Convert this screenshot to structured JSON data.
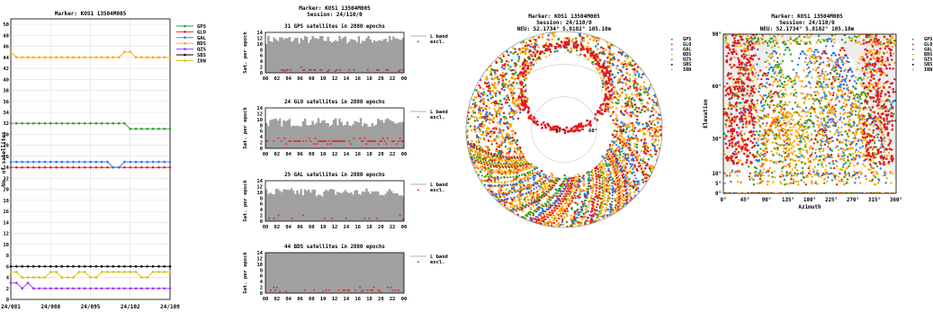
{
  "chart_data": [
    {
      "type": "line",
      "title": "Marker: KOS1 13504M005",
      "ylabel": "No. of satellites",
      "ylim": [
        0,
        51
      ],
      "y_ticks": [
        "0",
        "2",
        "4",
        "6",
        "8",
        "10",
        "12",
        "14",
        "16",
        "18",
        "20",
        "22",
        "24",
        "26",
        "28",
        "30",
        "32",
        "34",
        "36",
        "38",
        "40",
        "42",
        "44",
        "46",
        "48",
        "50"
      ],
      "x_ticks": [
        "24/081",
        "24/088",
        "24/095",
        "24/102",
        "24/109"
      ],
      "xlim": [
        0,
        28
      ],
      "grid": true,
      "legend_position": "right",
      "series": [
        {
          "name": "GPS",
          "color": "#2ca02c",
          "values": [
            32,
            32,
            32,
            32,
            32,
            32,
            32,
            32,
            32,
            32,
            32,
            32,
            32,
            32,
            32,
            32,
            32,
            32,
            32,
            32,
            32,
            31,
            31,
            31,
            31,
            31,
            31,
            31,
            31
          ]
        },
        {
          "name": "GLO",
          "color": "#e31a1c",
          "values": [
            24,
            24,
            24,
            24,
            24,
            24,
            24,
            24,
            24,
            24,
            24,
            24,
            24,
            24,
            24,
            24,
            24,
            24,
            24,
            24,
            24,
            24,
            24,
            24,
            24,
            24,
            24,
            24,
            24
          ]
        },
        {
          "name": "GAL",
          "color": "#1f78ff",
          "values": [
            25,
            25,
            25,
            25,
            25,
            25,
            25,
            25,
            25,
            25,
            25,
            25,
            25,
            25,
            25,
            25,
            25,
            25,
            24,
            24,
            25,
            25,
            25,
            25,
            25,
            25,
            25,
            25,
            25
          ]
        },
        {
          "name": "BDS",
          "color": "#ffa500",
          "values": [
            45,
            44,
            44,
            44,
            44,
            44,
            44,
            44,
            44,
            44,
            44,
            44,
            44,
            44,
            44,
            44,
            44,
            44,
            44,
            44,
            45,
            45,
            44,
            44,
            44,
            44,
            44,
            44,
            44
          ]
        },
        {
          "name": "QZS",
          "color": "#9b30ff",
          "values": [
            3,
            3,
            2,
            3,
            2,
            2,
            2,
            2,
            2,
            2,
            2,
            2,
            2,
            2,
            2,
            2,
            2,
            2,
            2,
            2,
            2,
            2,
            2,
            2,
            2,
            2,
            2,
            2,
            2
          ]
        },
        {
          "name": "SBS",
          "color": "#000000",
          "values": [
            6,
            6,
            6,
            6,
            6,
            6,
            6,
            6,
            6,
            6,
            6,
            6,
            6,
            6,
            6,
            6,
            6,
            6,
            6,
            6,
            6,
            6,
            6,
            6,
            6,
            6,
            6,
            6,
            6
          ]
        },
        {
          "name": "IRN",
          "color": "#d4c000",
          "values": [
            5,
            5,
            4,
            4,
            4,
            4,
            4,
            5,
            5,
            4,
            4,
            4,
            5,
            5,
            4,
            4,
            5,
            5,
            5,
            5,
            5,
            5,
            5,
            4,
            4,
            5,
            5,
            5,
            5
          ]
        }
      ]
    },
    {
      "type": "bar",
      "title": "Marker: KOS1 13504M005",
      "subtitle": "Session: 24/110/0",
      "ylabel": "Sat. per epoch",
      "ylim": [
        0,
        14
      ],
      "y_ticks": [
        "0",
        "2",
        "4",
        "6",
        "8",
        "10",
        "12",
        "14"
      ],
      "x_ticks": [
        "00",
        "02",
        "04",
        "06",
        "08",
        "10",
        "12",
        "14",
        "16",
        "18",
        "20",
        "22",
        "00"
      ],
      "legend": [
        "L band",
        "excl."
      ],
      "panels": [
        {
          "title": "31 GPS satellites in 2880 epochs",
          "band_mean": 11.5,
          "band_var": 1.5,
          "excl_level": 1,
          "excl_density": 0.25
        },
        {
          "title": "24 GLO satellites in 2880 epochs",
          "band_mean": 9,
          "band_var": 1.5,
          "excl_level": 2.5,
          "excl_density": 0.8
        },
        {
          "title": "25 GAL satellites in 2880 epochs",
          "band_mean": 10,
          "band_var": 1.5,
          "excl_level": 1,
          "excl_density": 0.15
        },
        {
          "title": "44 BDS satellites in 2880 epochs",
          "band_mean": 14,
          "band_var": 0,
          "excl_level": 1,
          "excl_density": 0.35
        }
      ]
    },
    {
      "type": "scatter",
      "title": "Marker: KOS1 13504M005",
      "subtitle": "Session: 24/110/0",
      "note": "NEU: 52.1734° 5.8182° 105.10m",
      "projection": "polar sky plot",
      "ring_labels": [
        "90°",
        "60°",
        "30°"
      ],
      "legend": [
        "GPS",
        "GLO",
        "GAL",
        "BDS",
        "QZS",
        "SBS",
        "IRN"
      ]
    },
    {
      "type": "scatter",
      "title": "Marker: KOS1 13504M005",
      "subtitle": "Session: 24/110/0",
      "note": "NEU: 52.1734° 5.8182° 105.10m",
      "xlabel": "Azimuth",
      "ylabel": "Elevation",
      "xlim": [
        0,
        360
      ],
      "ylim": [
        0,
        90
      ],
      "x_ticks": [
        "0°",
        "45°",
        "90°",
        "135°",
        "180°",
        "225°",
        "270°",
        "315°",
        "360°"
      ],
      "y_ticks": [
        "0°",
        "5°",
        "10°",
        "30°",
        "60°",
        "90°"
      ],
      "legend": [
        "GPS",
        "GLO",
        "GAL",
        "BDS",
        "QZS",
        "SBS",
        "IRN"
      ]
    }
  ],
  "colors": {
    "GPS": "#2ca02c",
    "GLO": "#e31a1c",
    "GAL": "#1f78ff",
    "BDS": "#ffa500",
    "QZS": "#9b30ff",
    "SBS": "#000000",
    "IRN": "#d4c000",
    "bar_fill": "#a0a0a0",
    "excl": "#e31a1c"
  }
}
